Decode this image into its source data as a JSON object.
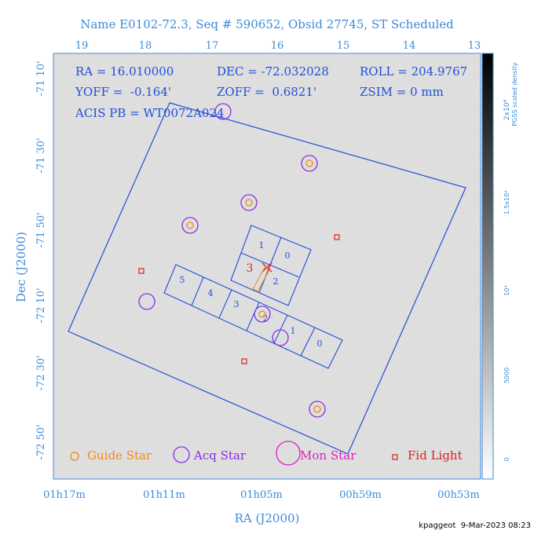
{
  "title": "Name E0102-72.3, Seq # 590652, Obsid 27745, ST Scheduled",
  "info": {
    "line1": [
      "RA = 16.010000",
      "DEC = -72.032028",
      "ROLL = 204.9767"
    ],
    "line2": [
      "YOFF =  -0.164'",
      "ZOFF =  0.6821'",
      "ZSIM = 0 mm"
    ],
    "line3": "ACIS PB = WT0072A024"
  },
  "axes": {
    "xlabel": "RA (J2000)",
    "ylabel": "Dec (J2000)",
    "top_ticks": [
      "19",
      "18",
      "17",
      "16",
      "15",
      "14",
      "13"
    ],
    "bottom_ticks": [
      "01h17m",
      "01h11m",
      "01h05m",
      "00h59m",
      "00h53m"
    ],
    "left_ticks": [
      "-71 10'",
      "-71 30'",
      "-71 50'",
      "-72 10'",
      "-72 30'",
      "-72 50'"
    ]
  },
  "colorbar": {
    "label_line1": "2x10⁴",
    "label_line2": "PGSS scaled density",
    "ticks": [
      "1.5x10⁴",
      "10⁴",
      "5000",
      "0"
    ]
  },
  "ccds": {
    "i_array": [
      "1",
      "0",
      "3",
      "2"
    ],
    "s_array": [
      "5",
      "4",
      "3",
      "2",
      "1",
      "0"
    ],
    "marker": "3"
  },
  "legend": {
    "guide": "Guide Star",
    "acq": "Acq Star",
    "mon": "Mon Star",
    "fid": "Fid Light"
  },
  "footer": "kpaggeot  9-Mar-2023 08:23",
  "colors": {
    "title": "#3a8bdc",
    "annot": "#1f4fd8",
    "guide": "#f08a18",
    "acq": "#8a2be2",
    "mon": "#e020c0",
    "fid": "#e0201c"
  }
}
